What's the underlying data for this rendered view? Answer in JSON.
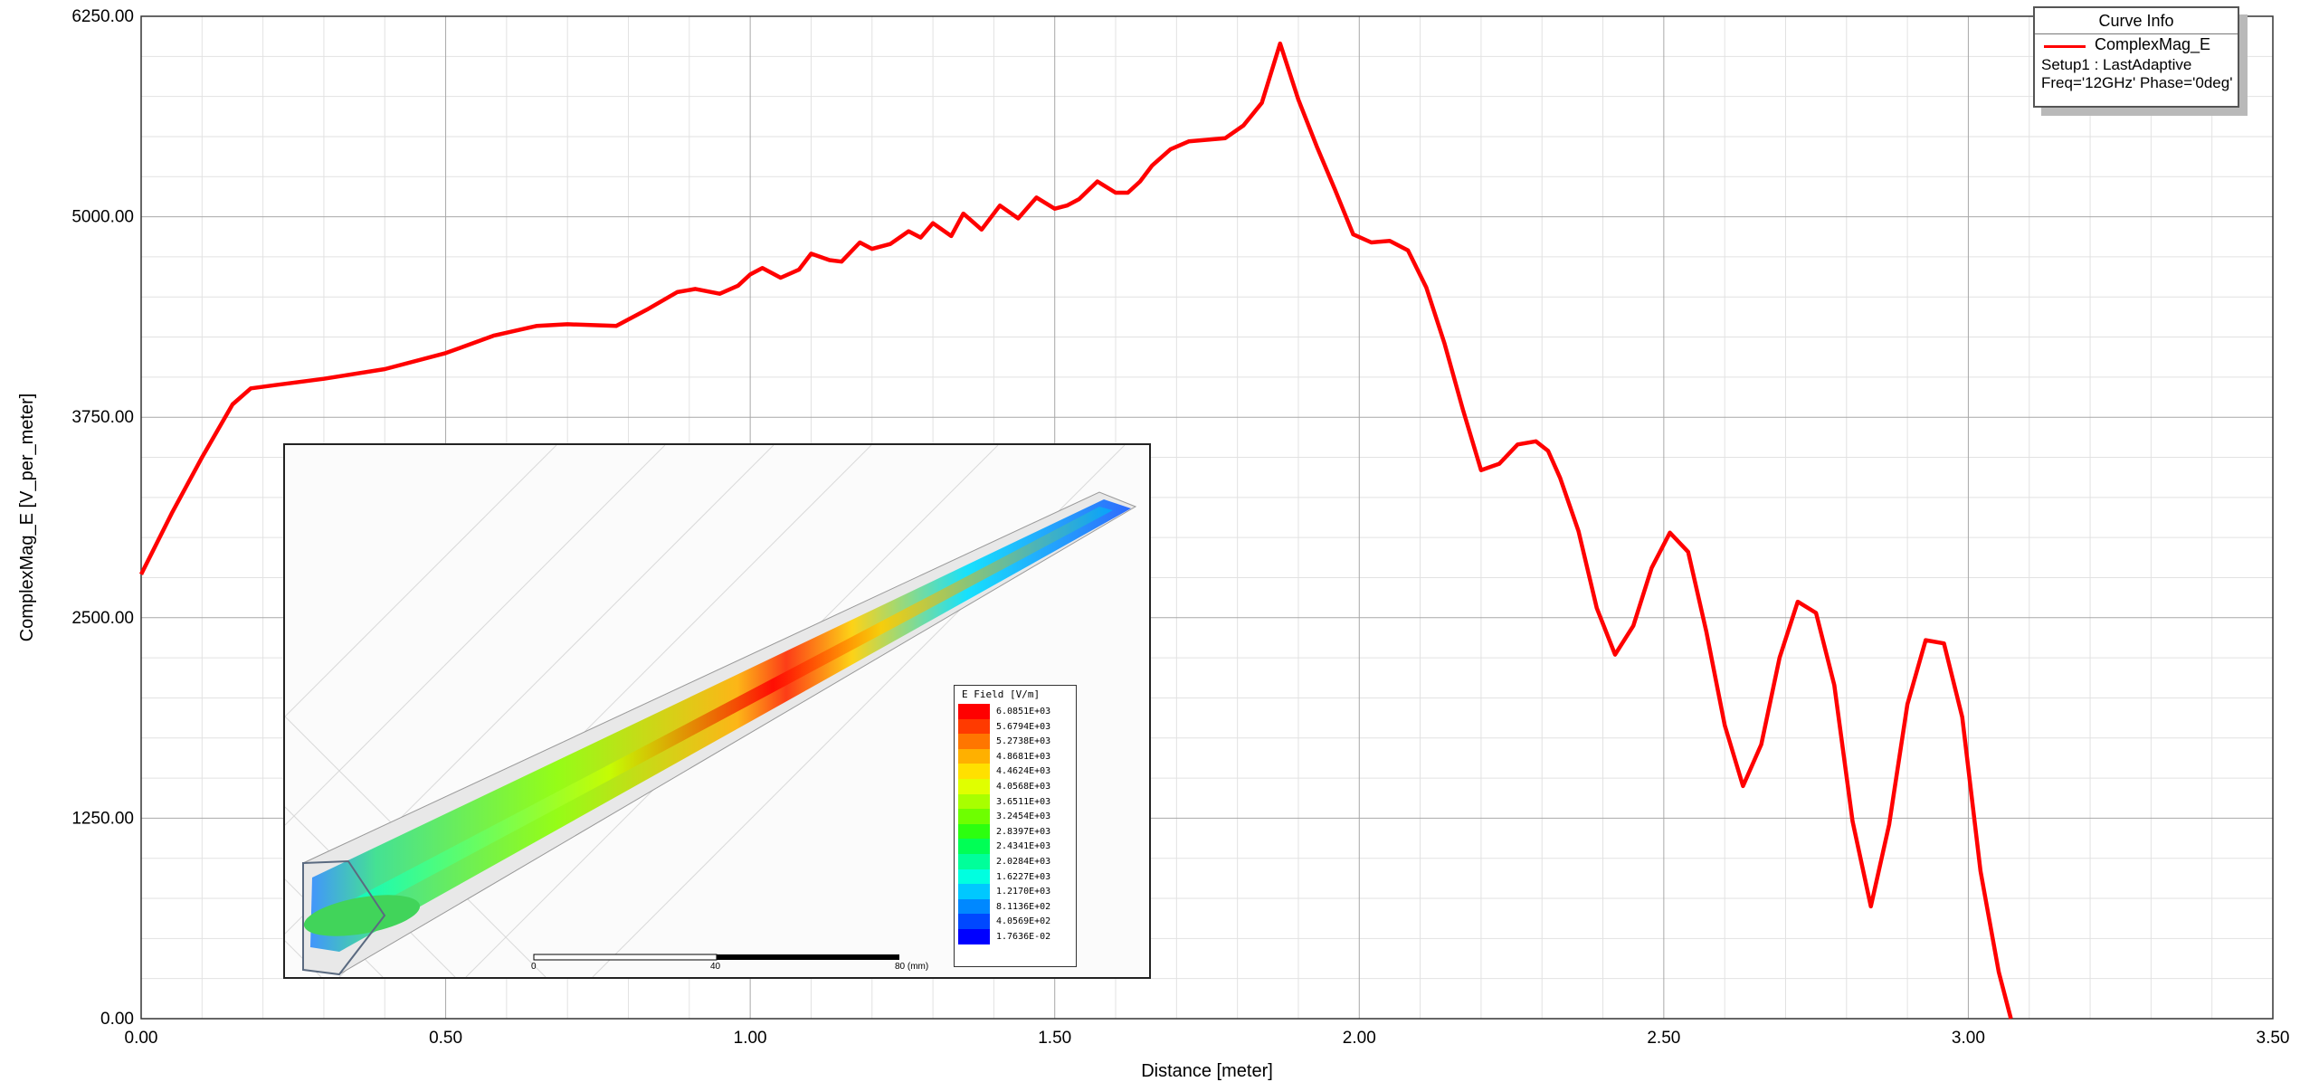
{
  "chart_data": {
    "type": "line",
    "title": "",
    "xlabel": "Distance [meter]",
    "ylabel": "ComplexMag_E [V_per_meter]",
    "xlim": [
      0,
      3.5
    ],
    "ylim": [
      0,
      6250
    ],
    "x_ticks": [
      "0.00",
      "0.50",
      "1.00",
      "1.50",
      "2.00",
      "2.50",
      "3.00",
      "3.50"
    ],
    "y_ticks": [
      "0.00",
      "1250.00",
      "2500.00",
      "3750.00",
      "5000.00",
      "6250.00"
    ],
    "grid": true,
    "legend": {
      "header": "Curve Info",
      "placement": "top-right",
      "entries": [
        {
          "name": "ComplexMag_E",
          "lines": [
            "Setup1 : LastAdaptive",
            "Freq='12GHz' Phase='0deg'"
          ]
        }
      ]
    },
    "series": [
      {
        "name": "ComplexMag_E",
        "color": "#ff0000",
        "x": [
          0.0,
          0.05,
          0.1,
          0.15,
          0.18,
          0.22,
          0.3,
          0.4,
          0.5,
          0.58,
          0.65,
          0.7,
          0.78,
          0.83,
          0.88,
          0.91,
          0.95,
          0.98,
          1.0,
          1.02,
          1.05,
          1.08,
          1.1,
          1.13,
          1.15,
          1.18,
          1.2,
          1.23,
          1.26,
          1.28,
          1.3,
          1.33,
          1.35,
          1.38,
          1.41,
          1.44,
          1.47,
          1.5,
          1.52,
          1.54,
          1.57,
          1.6,
          1.62,
          1.64,
          1.66,
          1.69,
          1.72,
          1.75,
          1.78,
          1.81,
          1.84,
          1.87,
          1.9,
          1.93,
          1.96,
          1.99,
          2.02,
          2.05,
          2.08,
          2.11,
          2.14,
          2.17,
          2.2,
          2.23,
          2.26,
          2.29,
          2.31,
          2.33,
          2.36,
          2.39,
          2.42,
          2.45,
          2.48,
          2.51,
          2.54,
          2.57,
          2.6,
          2.63,
          2.66,
          2.69,
          2.72,
          2.75,
          2.78,
          2.81,
          2.84,
          2.87,
          2.9,
          2.93,
          2.96,
          2.99,
          3.02,
          3.05,
          3.07
        ],
        "values": [
          2770,
          3150,
          3500,
          3830,
          3930,
          3950,
          3990,
          4050,
          4150,
          4260,
          4320,
          4330,
          4320,
          4420,
          4530,
          4550,
          4520,
          4570,
          4640,
          4680,
          4620,
          4670,
          4770,
          4730,
          4720,
          4840,
          4800,
          4830,
          4910,
          4870,
          4960,
          4880,
          5020,
          4920,
          5070,
          4990,
          5120,
          5050,
          5070,
          5110,
          5220,
          5150,
          5150,
          5220,
          5320,
          5420,
          5470,
          5480,
          5490,
          5570,
          5710,
          6080,
          5730,
          5440,
          5170,
          4890,
          4840,
          4850,
          4790,
          4560,
          4210,
          3800,
          3420,
          3460,
          3580,
          3600,
          3540,
          3370,
          3040,
          2560,
          2270,
          2450,
          2810,
          3030,
          2910,
          2410,
          1830,
          1450,
          1710,
          2250,
          2600,
          2530,
          2080,
          1230,
          700,
          1210,
          1960,
          2360,
          2340,
          1880,
          920,
          290,
          0
        ]
      }
    ]
  },
  "inset": {
    "colorbar_title": "E Field [V/m]",
    "colorbar_levels": [
      {
        "label": "6.0851E+03",
        "color": "#ff0000"
      },
      {
        "label": "5.6794E+03",
        "color": "#ff3a00"
      },
      {
        "label": "5.2738E+03",
        "color": "#ff7600"
      },
      {
        "label": "4.8681E+03",
        "color": "#ffb000"
      },
      {
        "label": "4.4624E+03",
        "color": "#ffe000"
      },
      {
        "label": "4.0568E+03",
        "color": "#e0ff00"
      },
      {
        "label": "3.6511E+03",
        "color": "#a8ff00"
      },
      {
        "label": "3.2454E+03",
        "color": "#6eff00"
      },
      {
        "label": "2.8397E+03",
        "color": "#2cff0f"
      },
      {
        "label": "2.4341E+03",
        "color": "#00ff55"
      },
      {
        "label": "2.0284E+03",
        "color": "#00ff9a"
      },
      {
        "label": "1.6227E+03",
        "color": "#00ffe0"
      },
      {
        "label": "1.2170E+03",
        "color": "#00c8ff"
      },
      {
        "label": "8.1136E+02",
        "color": "#0088ff"
      },
      {
        "label": "4.0569E+02",
        "color": "#0048ff"
      },
      {
        "label": "1.7636E-02",
        "color": "#0000ff"
      }
    ],
    "scale_labels": [
      "0",
      "40",
      "80 (mm)"
    ]
  }
}
